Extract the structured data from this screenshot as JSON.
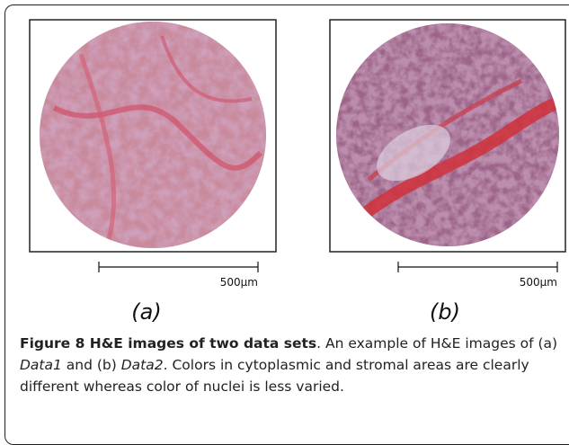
{
  "panels": [
    {
      "label": "(a)",
      "scale_bar": "500µm"
    },
    {
      "label": "(b)",
      "scale_bar": "500µm"
    }
  ],
  "caption": {
    "title": "Figure 8 H&E images of two data sets",
    "parts": [
      ". An example of H&E images of (a) ",
      "Data1",
      " and (b) ",
      "Data2",
      ". Colors in cytoplasmic and stromal areas are clearly different whereas color of nuclei is less varied."
    ]
  }
}
